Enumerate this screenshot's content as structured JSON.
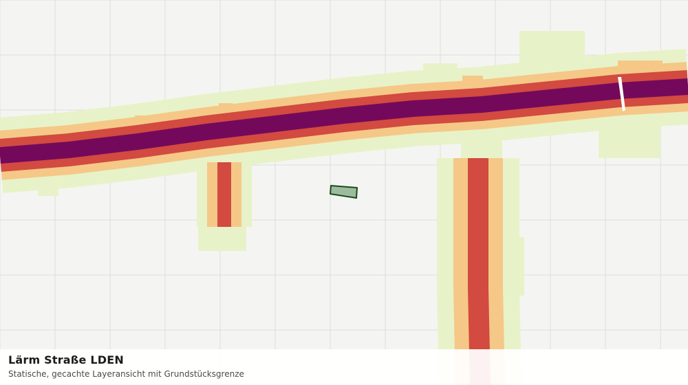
{
  "map": {
    "layer": "noise-road-lden",
    "colors": {
      "background": "#f4f5f2",
      "grid": "#dcdedb",
      "band_low": "#e8f2c8",
      "band_mid": "#f5c888",
      "band_high": "#d24a40",
      "band_top": "#74095c",
      "parcel_fill": "#9dbb9f",
      "parcel_stroke": "#1a4a1a"
    }
  },
  "caption": {
    "title": "Lärm Straße LDEN",
    "subtitle": "Statische, gecachte Layeransicht mit Grundstücksgrenze"
  }
}
